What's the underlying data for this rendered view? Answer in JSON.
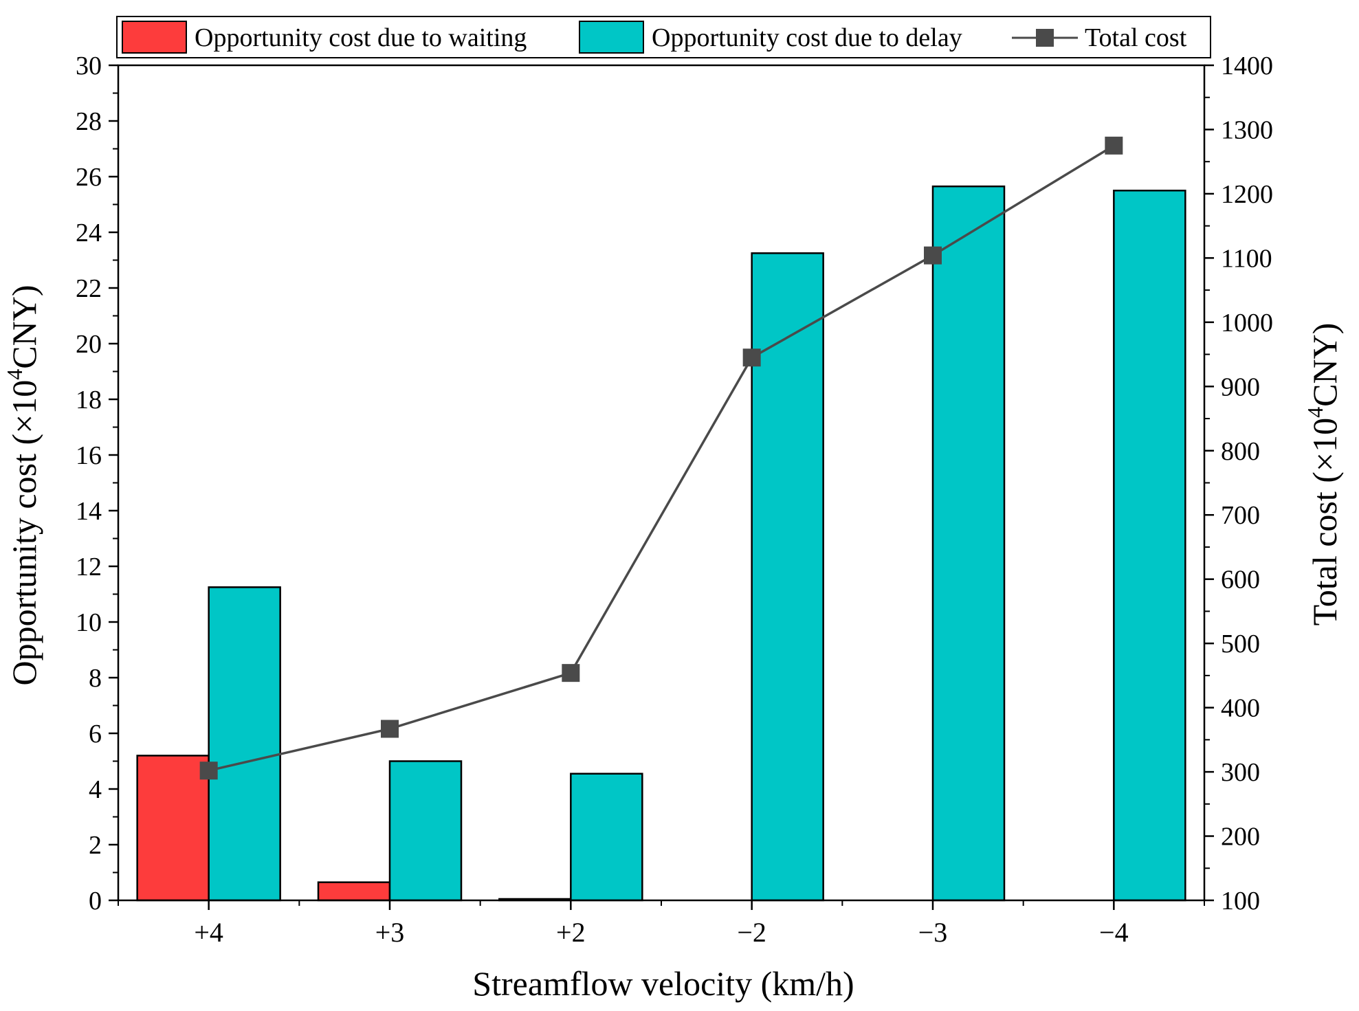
{
  "chart_data": {
    "type": "bar",
    "title": "",
    "categories": [
      "+4",
      "+3",
      "+2",
      "−2",
      "−3",
      "−4"
    ],
    "series": [
      {
        "name": "Opportunity cost due to waiting",
        "kind": "bar",
        "axis": "left",
        "color": "#fd3c3c",
        "values": [
          5.2,
          0.65,
          0.05,
          0,
          0,
          0
        ]
      },
      {
        "name": "Opportunity cost due to delay",
        "kind": "bar",
        "axis": "left",
        "color": "#00c6c6",
        "values": [
          11.25,
          5.0,
          4.55,
          23.25,
          25.65,
          25.5
        ]
      },
      {
        "name": "Total cost",
        "kind": "line",
        "axis": "right",
        "color": "#4a4a4a",
        "values": [
          302,
          367,
          454,
          945,
          1104,
          1275
        ]
      }
    ],
    "xlabel": "Streamflow velocity (km/h)",
    "ylabel": {
      "pre": "Opportunity cost (×10",
      "sup": "4",
      "post": "CNY)"
    },
    "y2label": {
      "pre": "Total cost (×10",
      "sup": "4",
      "post": "CNY)"
    },
    "ylim": [
      0,
      30
    ],
    "y2lim": [
      100,
      1400
    ],
    "yticks": [
      "0",
      "2",
      "4",
      "6",
      "8",
      "10",
      "12",
      "14",
      "16",
      "18",
      "20",
      "22",
      "24",
      "26",
      "28",
      "30"
    ],
    "y2ticks": [
      "100",
      "200",
      "300",
      "400",
      "500",
      "600",
      "700",
      "800",
      "900",
      "1000",
      "1100",
      "1200",
      "1300",
      "1400"
    ],
    "legend_position": "top"
  }
}
